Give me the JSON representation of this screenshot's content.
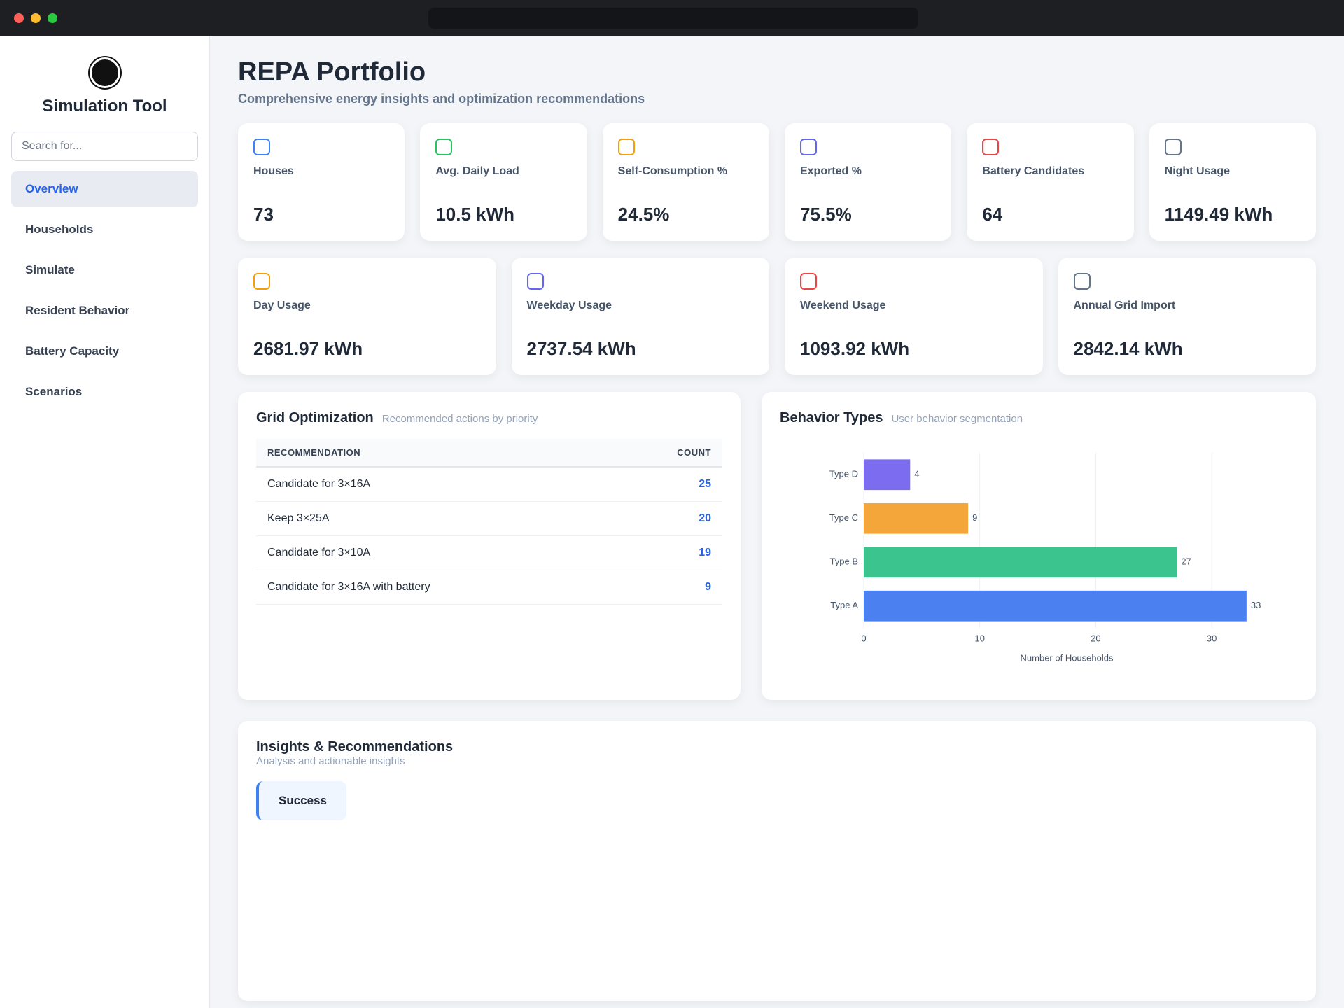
{
  "sidebar": {
    "title": "Simulation Tool",
    "search_placeholder": "Search for...",
    "nav": [
      "Overview",
      "Households",
      "Simulate",
      "Resident Behavior",
      "Battery Capacity",
      "Scenarios"
    ]
  },
  "header": {
    "title": "REPA Portfolio",
    "subtitle": "Comprehensive energy insights and optimization recommendations"
  },
  "stats_row_1": [
    {
      "label": "Houses",
      "value": "73"
    },
    {
      "label": "Avg. Daily Load",
      "value": "10.5 kWh"
    },
    {
      "label": "Self-Consumption %",
      "value": "24.5%"
    },
    {
      "label": "Exported %",
      "value": "75.5%"
    },
    {
      "label": "Battery Candidates",
      "value": "64"
    },
    {
      "label": "Night Usage",
      "value": "1149.49 kWh"
    }
  ],
  "stats_row_2": [
    {
      "label": "Day Usage",
      "value": "2681.97 kWh"
    },
    {
      "label": "Weekday Usage",
      "value": "2737.54 kWh"
    },
    {
      "label": "Weekend Usage",
      "value": "1093.92 kWh"
    },
    {
      "label": "Annual Grid Import",
      "value": "2842.14 kWh"
    }
  ],
  "grid_optimization": {
    "title": "Grid Optimization",
    "subtitle": "Recommended actions by priority",
    "columns": [
      "RECOMMENDATION",
      "COUNT"
    ],
    "rows": [
      [
        "Candidate for 3×16A",
        "25"
      ],
      [
        "Keep 3×25A",
        "20"
      ],
      [
        "Candidate for 3×10A",
        "19"
      ],
      [
        "Candidate for 3×16A with battery",
        "9"
      ]
    ]
  },
  "behavior_chart": {
    "type": "bar",
    "title": "Behavior Types",
    "subtitle": "User behavior segmentation",
    "categories": [
      "Type D",
      "Type C",
      "Type B",
      "Type A"
    ],
    "values": [
      4,
      9,
      27,
      33
    ],
    "colors": [
      "#7b6cf0",
      "#f4a63a",
      "#3cc48f",
      "#4a80f0"
    ],
    "x_label": "Number of Households",
    "xlim": [
      0,
      35
    ],
    "xticks": [
      0,
      10,
      20,
      30
    ],
    "grid": true
  },
  "insights": {
    "title": "Insights & Recommendations",
    "subtitle": "Analysis and actionable insights",
    "cards": [
      "Success"
    ]
  }
}
